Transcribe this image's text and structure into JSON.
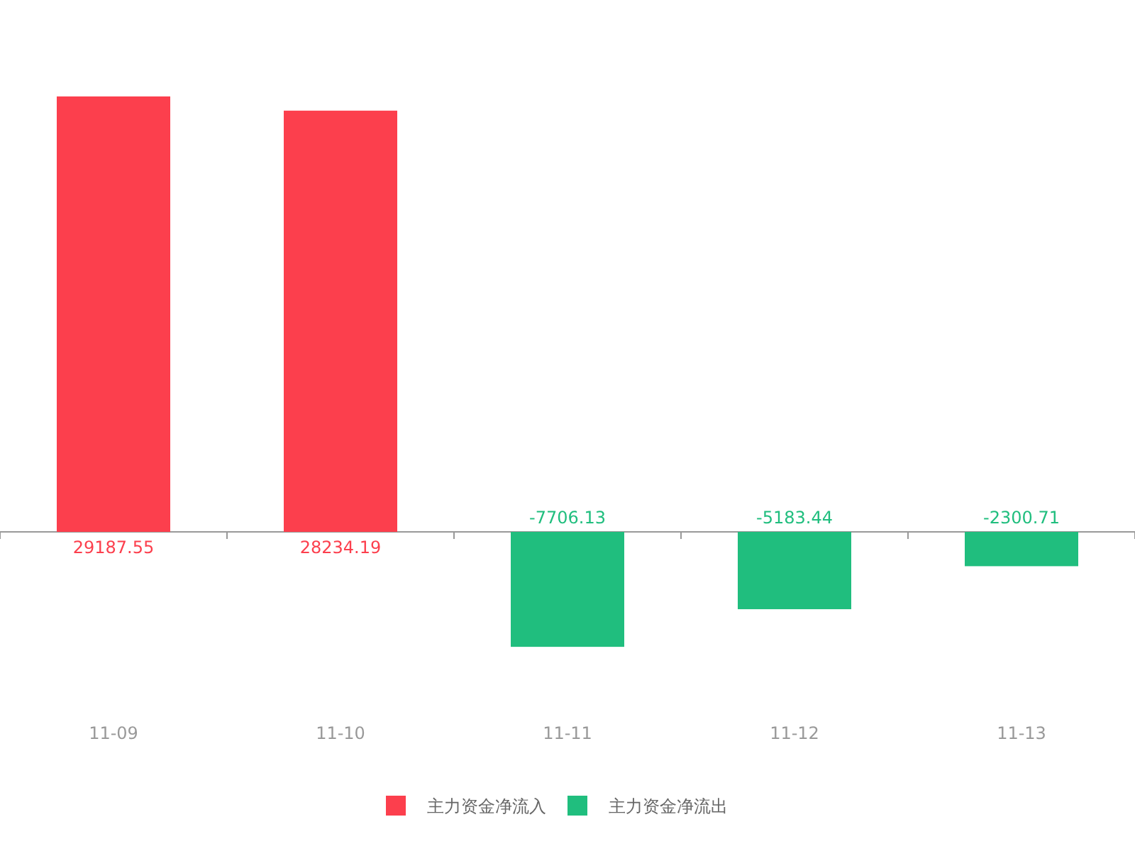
{
  "chart_data": {
    "type": "bar",
    "categories": [
      "11-09",
      "11-10",
      "11-11",
      "11-12",
      "11-13"
    ],
    "series": [
      {
        "name": "主力资金净流入",
        "color": "#fc3f4d",
        "values": [
          29187.55,
          28234.19,
          null,
          null,
          null
        ]
      },
      {
        "name": "主力资金净流出",
        "color": "#20be7e",
        "values": [
          null,
          null,
          -7706.13,
          -5183.44,
          -2300.71
        ]
      }
    ],
    "data_labels": true,
    "legend": "bottom"
  }
}
